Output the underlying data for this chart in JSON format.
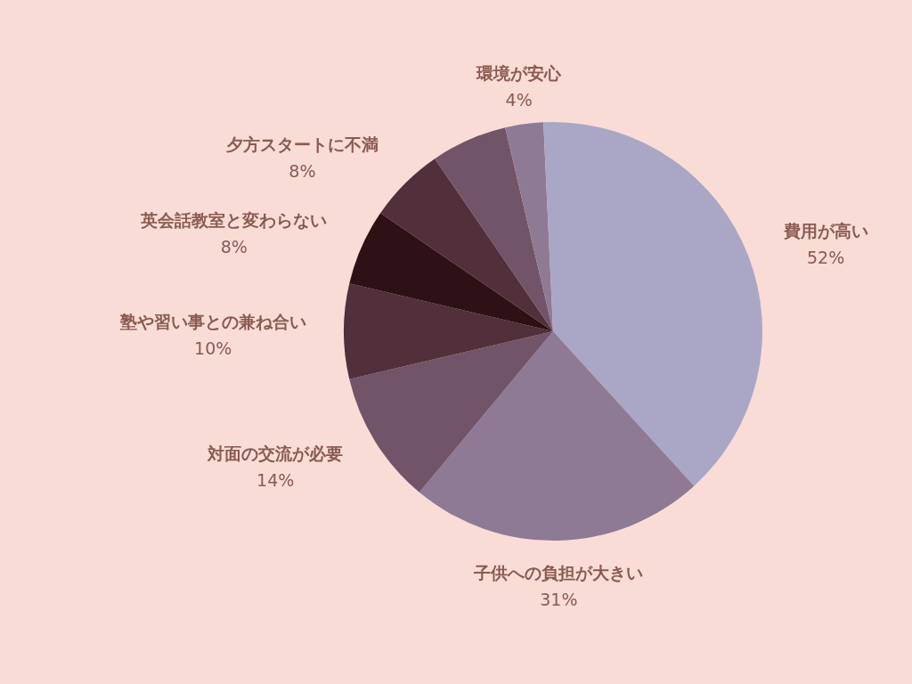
{
  "chart_data": {
    "type": "pie",
    "categories": [
      "費用が高い",
      "子供への負担が大きい",
      "対面の交流が必要",
      "塾や習い事との兼ね合い",
      "英会話教室と変わらない",
      "夕方スタートに不満",
      null,
      "環境が安心",
      null
    ],
    "values": [
      52,
      31,
      14,
      10,
      8,
      8,
      8,
      4,
      1
    ],
    "value_labels": [
      "52%",
      "31%",
      "14%",
      "10%",
      "8%",
      "8%",
      null,
      "4%",
      null
    ],
    "colors": [
      "#aaa7c6",
      "#8f7a95",
      "#725468",
      "#512f3b",
      "#2d1114",
      "#512f3b",
      "#725468",
      "#8f7a95",
      "#aaa7c6"
    ],
    "legend": false
  }
}
